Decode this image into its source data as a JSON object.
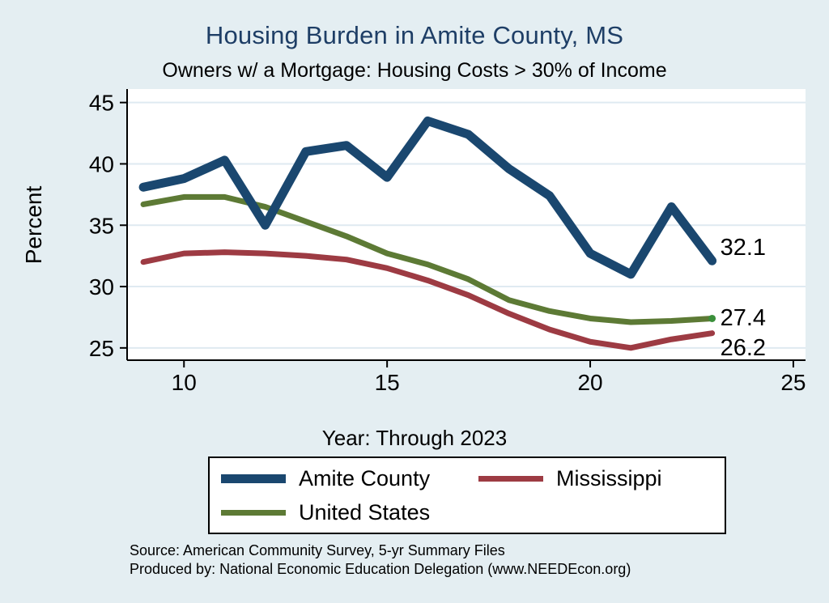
{
  "chart": {
    "title": "Housing Burden in Amite County, MS",
    "subtitle": "Owners w/ a Mortgage: Housing Costs > 30% of Income",
    "ylabel": "Percent",
    "xlabel": "Year: Through 2023",
    "source_line1": "Source: American Community Survey, 5-yr Summary Files",
    "source_line2": "Produced by: National Economic Education Delegation (www.NEEDEcon.org)",
    "title_color": "#1e3e66",
    "background_color": "#e4eef2",
    "plot_background": "#ffffff",
    "gridline_color": "#dfeaf1",
    "axis_color": "#000000"
  },
  "legend": {
    "items": [
      {
        "label": "Amite County",
        "color": "#1a476f"
      },
      {
        "label": "Mississippi",
        "color": "#9d3b43"
      },
      {
        "label": "United States",
        "color": "#5d7a35"
      }
    ]
  },
  "chart_data": {
    "type": "line",
    "x": [
      9,
      10,
      11,
      12,
      13,
      14,
      15,
      16,
      17,
      18,
      19,
      20,
      21,
      22,
      23
    ],
    "series": [
      {
        "name": "Amite County",
        "color": "#1a476f",
        "values": [
          38.1,
          38.8,
          40.3,
          35.0,
          41.0,
          41.5,
          38.9,
          43.5,
          42.4,
          39.6,
          37.4,
          32.7,
          31.0,
          36.5,
          32.1
        ]
      },
      {
        "name": "Mississippi",
        "color": "#9d3b43",
        "values": [
          32.0,
          32.7,
          32.8,
          32.7,
          32.5,
          32.2,
          31.5,
          30.5,
          29.3,
          27.8,
          26.5,
          25.5,
          25.0,
          25.7,
          26.2
        ]
      },
      {
        "name": "United States",
        "color": "#5d7a35",
        "end_dot": true,
        "end_dot_color": "#3a8f3a",
        "values": [
          36.7,
          37.3,
          37.3,
          36.5,
          35.3,
          34.1,
          32.7,
          31.8,
          30.6,
          28.9,
          28.0,
          27.4,
          27.1,
          27.2,
          27.4
        ]
      }
    ],
    "end_labels": [
      {
        "text": "32.1",
        "value": 32.1
      },
      {
        "text": "27.4",
        "value": 27.4
      },
      {
        "text": "26.2",
        "value": 26.2
      }
    ],
    "xticks": [
      10,
      15,
      20,
      25
    ],
    "yticks": [
      25,
      30,
      35,
      40,
      45
    ],
    "xlim": [
      8.6,
      25.3
    ],
    "ylim": [
      24.0,
      46.1
    ],
    "grid": true,
    "legend_position": "bottom",
    "title": "Housing Burden in Amite County, MS",
    "xlabel": "Year: Through 2023",
    "ylabel": "Percent"
  }
}
